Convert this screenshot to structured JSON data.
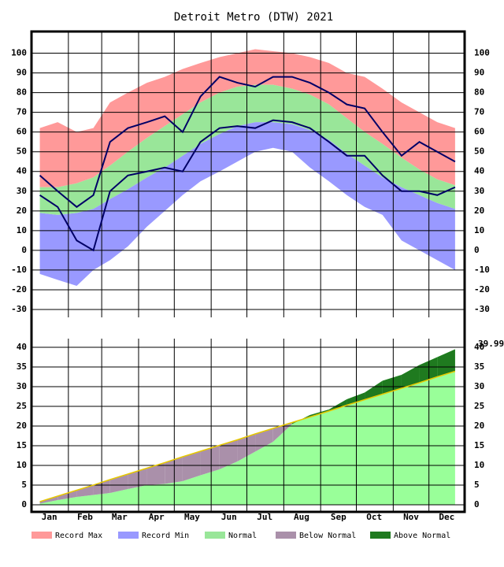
{
  "chart_data": [
    {
      "type": "band",
      "title": "Detroit Metro (DTW) 2021",
      "x": [
        8,
        23,
        39,
        53,
        67,
        82,
        98,
        113,
        128,
        143,
        159,
        174,
        189,
        204,
        220,
        235,
        251,
        266,
        281,
        296,
        312,
        327,
        342,
        357
      ],
      "xlim": [
        1,
        365
      ],
      "xticks": [
        {
          "value": 16,
          "label": "Jan"
        },
        {
          "value": 46,
          "label": "Feb"
        },
        {
          "value": 75,
          "label": "Mar"
        },
        {
          "value": 106,
          "label": "Apr"
        },
        {
          "value": 136,
          "label": "May"
        },
        {
          "value": 167,
          "label": "Jun"
        },
        {
          "value": 197,
          "label": "Jul"
        },
        {
          "value": 228,
          "label": "Aug"
        },
        {
          "value": 259,
          "label": "Sep"
        },
        {
          "value": 289,
          "label": "Oct"
        },
        {
          "value": 320,
          "label": "Nov"
        },
        {
          "value": 350,
          "label": "Dec"
        }
      ],
      "xgrid": [
        32,
        60,
        91,
        121,
        152,
        182,
        213,
        244,
        274,
        305,
        335
      ],
      "ylim": [
        -34,
        111
      ],
      "yticks": [
        -30,
        -20,
        -10,
        0,
        10,
        20,
        30,
        40,
        50,
        60,
        70,
        80,
        90,
        100
      ],
      "grid": true,
      "series": [
        {
          "name": "Record Max",
          "color": "#ff9999",
          "values": [
            62,
            65,
            60,
            62,
            75,
            80,
            85,
            88,
            92,
            95,
            98,
            100,
            102,
            101,
            100,
            98,
            95,
            90,
            88,
            82,
            75,
            70,
            65,
            62
          ]
        },
        {
          "name": "Record Min",
          "color": "#9999ff",
          "values": [
            -12,
            -15,
            -18,
            -10,
            -5,
            2,
            12,
            20,
            28,
            35,
            40,
            45,
            50,
            52,
            50,
            42,
            35,
            28,
            22,
            18,
            5,
            0,
            -5,
            -10
          ]
        },
        {
          "name": "Normal",
          "color": "#99e699",
          "high": [
            32,
            32,
            34,
            37,
            43,
            50,
            57,
            63,
            69,
            75,
            80,
            83,
            84,
            84,
            82,
            79,
            74,
            67,
            60,
            54,
            47,
            41,
            36,
            33
          ],
          "low": [
            19,
            18,
            19,
            21,
            26,
            31,
            37,
            42,
            48,
            54,
            59,
            63,
            65,
            65,
            64,
            61,
            56,
            49,
            43,
            37,
            32,
            28,
            24,
            21
          ]
        },
        {
          "color": "#000066",
          "high": [
            38,
            30,
            22,
            28,
            55,
            62,
            65,
            68,
            60,
            78,
            88,
            85,
            83,
            88,
            88,
            85,
            80,
            74,
            72,
            60,
            48,
            55,
            50,
            45
          ],
          "low": [
            28,
            22,
            5,
            0,
            30,
            38,
            40,
            42,
            40,
            55,
            62,
            63,
            62,
            66,
            65,
            62,
            55,
            48,
            48,
            38,
            30,
            30,
            28,
            32
          ]
        }
      ]
    },
    {
      "type": "cumulative",
      "x": [
        8,
        23,
        39,
        53,
        67,
        82,
        98,
        113,
        128,
        143,
        159,
        174,
        189,
        204,
        220,
        235,
        251,
        266,
        281,
        296,
        312,
        327,
        342,
        357
      ],
      "xlim": [
        1,
        365
      ],
      "ylim": [
        -1.8,
        42.2
      ],
      "yticks": [
        0,
        5,
        10,
        15,
        20,
        25,
        30,
        35,
        40
      ],
      "grid": true,
      "annotation": "39.99",
      "series": [
        {
          "color": "#e6c800",
          "values": [
            0.8,
            2.2,
            3.7,
            5.0,
            6.4,
            7.8,
            9.3,
            10.7,
            12.2,
            13.6,
            15.1,
            16.5,
            18.0,
            19.4,
            20.9,
            22.3,
            23.8,
            25.3,
            26.7,
            28.1,
            29.6,
            31.0,
            32.5,
            33.9
          ]
        },
        {
          "color": "#99ff99",
          "values": [
            0.3,
            1.2,
            2.0,
            2.5,
            3.0,
            4.0,
            5.0,
            5.3,
            6.0,
            7.5,
            9.0,
            11.0,
            13.5,
            16.0,
            20.5,
            22.8,
            24.2,
            26.8,
            28.5,
            31.5,
            33.0,
            35.5,
            37.5,
            39.5
          ]
        }
      ],
      "fills": [
        {
          "name": "Below Normal",
          "color": "#aa90aa"
        },
        {
          "name": "Above Normal",
          "color": "#1f7a1f"
        }
      ]
    }
  ]
}
